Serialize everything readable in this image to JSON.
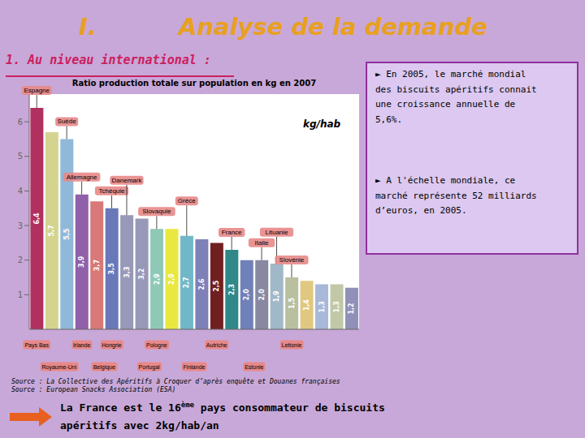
{
  "chart_data": {
    "type": "bar",
    "heading": [
      "I.",
      "Analyse de la demande"
    ],
    "subtitle": "1. Au niveau international :",
    "title": "Ratio production totale sur population en kg en 2007",
    "y_label": "kg/hab",
    "categories": [
      null,
      null,
      null,
      null,
      null,
      null,
      null,
      null,
      null,
      null,
      null,
      null,
      null,
      null,
      null,
      null,
      null,
      null,
      null,
      null,
      null,
      null
    ],
    "values": [
      6.4,
      5.7,
      5.5,
      3.9,
      3.7,
      3.5,
      3.3,
      3.2,
      2.9,
      2.9,
      2.7,
      2.6,
      2.5,
      2.3,
      2.0,
      2.0,
      1.9,
      1.5,
      1.4,
      1.3,
      1.3,
      1.2
    ],
    "value_labels": [
      "6,4",
      "5,7",
      "5,5",
      "3,9",
      "3,7",
      "3,5",
      "3,3",
      "3,2",
      "2,9",
      "2,9",
      "2,7",
      "2,6",
      "2,5",
      "2,3",
      "2,0",
      "2,0",
      "1,9",
      "1,5",
      "1,4",
      "1,3",
      "1,3",
      "1,2"
    ],
    "colors": [
      "#b03060",
      "#d4d490",
      "#90b8d8",
      "#9060a8",
      "#d87878",
      "#6878b8",
      "#9898b8",
      "#9898b8",
      "#90c8b8",
      "#e8e840",
      "#70b8c8",
      "#8080b8",
      "#702020",
      "#308888",
      "#7080b8",
      "#8888a0",
      "#a0b8c8",
      "#b8c0a0",
      "#e0c880",
      "#a8b8d8",
      "#c0c8a8",
      "#9090b8"
    ],
    "ylim": [
      0,
      6.8
    ],
    "yticks": [
      1,
      2,
      3,
      4,
      5,
      6
    ],
    "grid": false,
    "data_labels": true,
    "tick_labels": "y",
    "annotations": [
      {
        "text": "Espagne",
        "x": 0,
        "y": 6.4
      },
      {
        "text": "Suède",
        "x": 2,
        "y": 5.5
      },
      {
        "text": "Allemagne",
        "x": 3,
        "y": 3.9
      },
      {
        "text": "Tchéquie",
        "x": 5,
        "y": 3.5
      },
      {
        "text": "Danemark",
        "x": 6,
        "y": 3.3
      },
      {
        "text": "Slovaquie",
        "x": 8,
        "y": 2.9
      },
      {
        "text": "Grèce",
        "x": 10,
        "y": 2.7
      },
      {
        "text": "France",
        "x": 13,
        "y": 2.3
      },
      {
        "text": "Lituanie",
        "x": 16,
        "y": 1.9
      },
      {
        "text": "Slovénie",
        "x": 17,
        "y": 1.5
      },
      {
        "text": "Italie",
        "x": 15,
        "y": 2.0
      }
    ],
    "bottom_labels": [
      [
        {
          "text": "Pays Bas",
          "x": 0
        },
        {
          "text": "Irlande",
          "x": 3
        },
        {
          "text": "Hongrie",
          "x": 5
        },
        {
          "text": "Pologne",
          "x": 8
        },
        {
          "text": "Autriche",
          "x": 12
        },
        {
          "text": "Lettonie",
          "x": 17
        }
      ],
      [
        {
          "text": "Royaume-Uni",
          "x": 1.5
        },
        {
          "text": "Belgique",
          "x": 4.5
        },
        {
          "text": "Portugal",
          "x": 7.5
        },
        {
          "text": "Finlande",
          "x": 10.5
        },
        {
          "text": "Estonie",
          "x": 14.5
        }
      ]
    ],
    "info": [
      "► En 2005, le marché mondial\ndes biscuits apéritifs connait\nune croissance annuelle de\n5,6%.",
      "► A l'échelle mondiale, ce\nmarché représente 52 milliards\nd’euros, en 2005."
    ],
    "source": "Source : La Collective des Apéritifs à Croquer d’après enquête et Douanes françaises\nSource : European Snacks Association (ESA)",
    "footer": {
      "line1": "La France est le 16",
      "sup": "ème",
      "line1b": " pays consommateur de biscuits",
      "line2": "apéritifs avec 2kg/hab/an"
    }
  }
}
